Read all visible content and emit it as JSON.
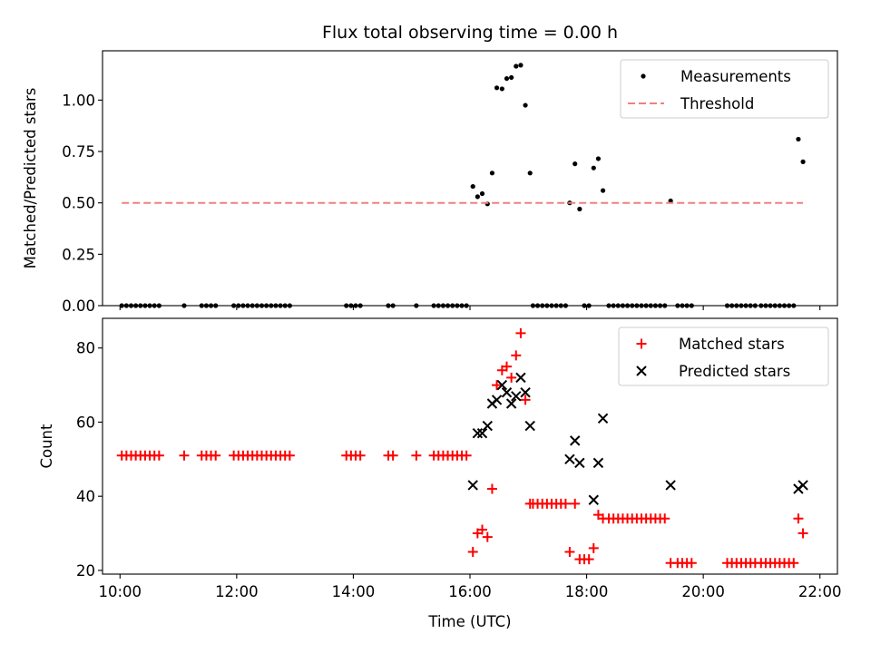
{
  "chart_data": {
    "title": "Flux total observing time = 0.00 h",
    "xlabel": "Time (UTC)",
    "xlim": [
      9.7,
      22.3
    ],
    "xticks": [
      10,
      12,
      14,
      16,
      18,
      20,
      22
    ],
    "xtick_labels": [
      "10:00",
      "12:00",
      "14:00",
      "16:00",
      "18:00",
      "20:00",
      "22:00"
    ],
    "panels": [
      {
        "name": "ratio",
        "type": "scatter",
        "ylabel": "Matched/Predicted stars",
        "ylim": [
          0,
          1.24
        ],
        "yticks": [
          0,
          0.25,
          0.5,
          0.75,
          1.0
        ],
        "ytick_labels": [
          "0.00",
          "0.25",
          "0.50",
          "0.75",
          "1.00"
        ],
        "legend": "top-right",
        "series": [
          {
            "name": "Measurements",
            "kind": "dot",
            "color": "#000000",
            "x": [
              10.03,
              10.11,
              10.19,
              10.27,
              10.35,
              10.43,
              10.51,
              10.59,
              10.67,
              11.1,
              11.4,
              11.48,
              11.56,
              11.64,
              11.95,
              12.03,
              12.11,
              12.19,
              12.27,
              12.35,
              12.43,
              12.51,
              12.59,
              12.67,
              12.75,
              12.83,
              12.91,
              13.88,
              13.96,
              14.04,
              14.12,
              14.6,
              14.68,
              15.08,
              15.38,
              15.46,
              15.54,
              15.62,
              15.7,
              15.78,
              15.86,
              15.94,
              16.05,
              16.13,
              16.21,
              16.3,
              16.38,
              16.46,
              16.55,
              16.63,
              16.71,
              16.79,
              16.87,
              16.95,
              17.03,
              17.08,
              17.16,
              17.24,
              17.32,
              17.4,
              17.48,
              17.56,
              17.64,
              17.71,
              17.8,
              17.88,
              17.96,
              18.04,
              18.12,
              18.2,
              18.28,
              18.38,
              18.46,
              18.54,
              18.62,
              18.7,
              18.78,
              18.86,
              18.94,
              19.02,
              19.1,
              19.18,
              19.26,
              19.34,
              19.44,
              19.56,
              19.64,
              19.72,
              19.8,
              20.41,
              20.49,
              20.57,
              20.65,
              20.73,
              20.81,
              20.89,
              20.99,
              21.07,
              21.15,
              21.23,
              21.31,
              21.39,
              21.47,
              21.55,
              21.63,
              21.71
            ],
            "y": [
              0,
              0,
              0,
              0,
              0,
              0,
              0,
              0,
              0,
              0,
              0,
              0,
              0,
              0,
              0,
              0,
              0,
              0,
              0,
              0,
              0,
              0,
              0,
              0,
              0,
              0,
              0,
              0,
              0,
              0,
              0,
              0,
              0,
              0,
              0,
              0,
              0,
              0,
              0,
              0,
              0,
              0,
              0.58,
              0.53,
              0.545,
              0.495,
              0.645,
              1.06,
              1.055,
              1.105,
              1.11,
              1.165,
              1.17,
              0.975,
              0.645,
              0,
              0,
              0,
              0,
              0,
              0,
              0,
              0,
              0.5,
              0.69,
              0.47,
              0,
              0,
              0.67,
              0.715,
              0.56,
              0,
              0,
              0,
              0,
              0,
              0,
              0,
              0,
              0,
              0,
              0,
              0,
              0,
              0.51,
              0,
              0,
              0,
              0,
              0,
              0,
              0,
              0,
              0,
              0,
              0,
              0,
              0,
              0,
              0,
              0,
              0,
              0,
              0,
              0.81,
              0.7
            ]
          },
          {
            "name": "Threshold",
            "kind": "dashed-line",
            "color": "#f08080",
            "x": [
              10.03,
              21.71
            ],
            "y": [
              0.5,
              0.5
            ]
          }
        ]
      },
      {
        "name": "count",
        "type": "scatter",
        "ylabel": "Count",
        "ylim": [
          19,
          88
        ],
        "yticks": [
          20,
          40,
          60,
          80
        ],
        "ytick_labels": [
          "20",
          "40",
          "60",
          "80"
        ],
        "legend": "top-right",
        "series": [
          {
            "name": "Matched stars",
            "kind": "plus",
            "color": "#ff0000",
            "x": [
              10.03,
              10.11,
              10.19,
              10.27,
              10.35,
              10.43,
              10.51,
              10.59,
              10.67,
              11.1,
              11.4,
              11.48,
              11.56,
              11.64,
              11.95,
              12.03,
              12.11,
              12.19,
              12.27,
              12.35,
              12.43,
              12.51,
              12.59,
              12.67,
              12.75,
              12.83,
              12.91,
              13.88,
              13.96,
              14.04,
              14.12,
              14.6,
              14.68,
              15.08,
              15.38,
              15.46,
              15.54,
              15.62,
              15.7,
              15.78,
              15.86,
              15.94,
              16.05,
              16.13,
              16.21,
              16.3,
              16.38,
              16.46,
              16.55,
              16.63,
              16.71,
              16.79,
              16.87,
              16.95,
              17.03,
              17.08,
              17.16,
              17.24,
              17.32,
              17.4,
              17.48,
              17.56,
              17.64,
              17.71,
              17.8,
              17.88,
              17.96,
              18.04,
              18.12,
              18.2,
              18.28,
              18.38,
              18.46,
              18.54,
              18.62,
              18.7,
              18.78,
              18.86,
              18.94,
              19.02,
              19.1,
              19.18,
              19.26,
              19.34,
              19.44,
              19.56,
              19.64,
              19.72,
              19.8,
              20.41,
              20.49,
              20.57,
              20.65,
              20.73,
              20.81,
              20.89,
              20.99,
              21.07,
              21.15,
              21.23,
              21.31,
              21.39,
              21.47,
              21.55,
              21.63,
              21.71
            ],
            "y": [
              51,
              51,
              51,
              51,
              51,
              51,
              51,
              51,
              51,
              51,
              51,
              51,
              51,
              51,
              51,
              51,
              51,
              51,
              51,
              51,
              51,
              51,
              51,
              51,
              51,
              51,
              51,
              51,
              51,
              51,
              51,
              51,
              51,
              51,
              51,
              51,
              51,
              51,
              51,
              51,
              51,
              51,
              25,
              30,
              31,
              29,
              42,
              70,
              74,
              75,
              72,
              78,
              84,
              66,
              38,
              38,
              38,
              38,
              38,
              38,
              38,
              38,
              38,
              25,
              38,
              23,
              23,
              23,
              26,
              35,
              34,
              34,
              34,
              34,
              34,
              34,
              34,
              34,
              34,
              34,
              34,
              34,
              34,
              34,
              22,
              22,
              22,
              22,
              22,
              22,
              22,
              22,
              22,
              22,
              22,
              22,
              22,
              22,
              22,
              22,
              22,
              22,
              22,
              22,
              34,
              30
            ]
          },
          {
            "name": "Predicted stars",
            "kind": "x",
            "color": "#000000",
            "x": [
              16.05,
              16.13,
              16.21,
              16.3,
              16.38,
              16.46,
              16.55,
              16.63,
              16.71,
              16.79,
              16.87,
              16.95,
              17.03,
              17.71,
              17.8,
              17.88,
              18.12,
              18.2,
              18.28,
              19.44,
              21.63,
              21.71
            ],
            "y": [
              43,
              57,
              57,
              59,
              65,
              66,
              70,
              68,
              65,
              67,
              72,
              68,
              59,
              50,
              55,
              49,
              39,
              49,
              61,
              43,
              42,
              43
            ]
          }
        ]
      }
    ]
  }
}
